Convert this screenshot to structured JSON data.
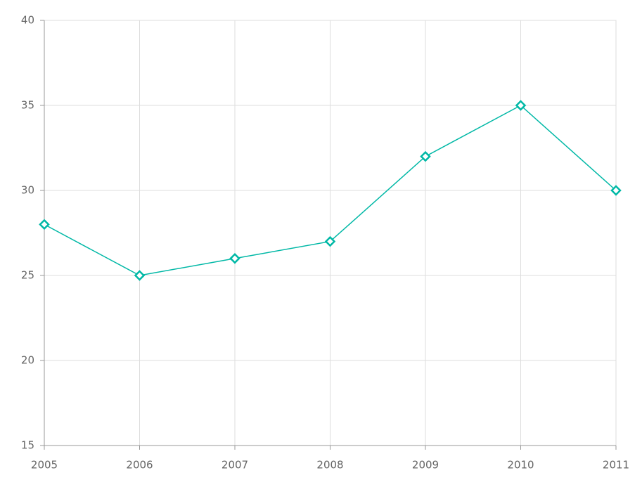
{
  "chart_data": {
    "type": "line",
    "x": [
      2005,
      2006,
      2007,
      2008,
      2009,
      2010,
      2011
    ],
    "series": [
      {
        "color": "#00b8a6",
        "values": [
          28,
          25,
          26,
          27,
          32,
          35,
          30
        ]
      }
    ],
    "xlim": [
      2005,
      2011
    ],
    "xticks": [
      2005,
      2006,
      2007,
      2008,
      2009,
      2010,
      2011
    ],
    "ylim": [
      15,
      40
    ],
    "yticks": [
      15,
      20,
      25,
      30,
      35,
      40
    ],
    "grid": true
  }
}
